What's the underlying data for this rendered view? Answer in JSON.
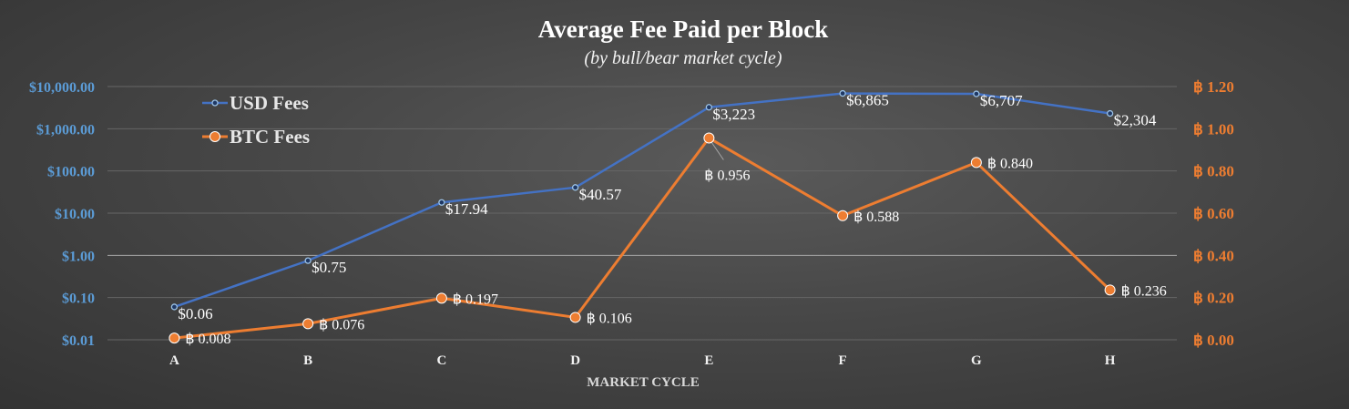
{
  "chart_data": {
    "type": "line",
    "title": "Average Fee Paid per Block",
    "subtitle": "(by bull/bear market cycle)",
    "xlabel": "MARKET CYCLE",
    "categories": [
      "A",
      "B",
      "C",
      "D",
      "E",
      "F",
      "G",
      "H"
    ],
    "y_left": {
      "scale": "log",
      "range": [
        0.01,
        10000
      ],
      "ticks": [
        0.01,
        0.1,
        1,
        10,
        100,
        1000,
        10000
      ],
      "tick_labels": [
        "$0.01",
        "$0.10",
        "$1.00",
        "$10.00",
        "$100.00",
        "$1,000.00",
        "$10,000.00"
      ],
      "color": "#5b9bd5"
    },
    "y_right": {
      "scale": "linear",
      "range": [
        0,
        1.2
      ],
      "ticks": [
        0,
        0.2,
        0.4,
        0.6,
        0.8,
        1.0,
        1.2
      ],
      "tick_labels": [
        "฿ 0.00",
        "฿ 0.20",
        "฿ 0.40",
        "฿ 0.60",
        "฿ 0.80",
        "฿ 1.00",
        "฿ 1.20"
      ],
      "color": "#ed7d31"
    },
    "grid": true,
    "legend_position": "top-left",
    "series": [
      {
        "name": "USD Fees",
        "axis": "left",
        "color": "#4472c4",
        "values": [
          0.06,
          0.75,
          17.94,
          40.57,
          3223,
          6865,
          6707,
          2304
        ],
        "labels": [
          "$0.06",
          "$0.75",
          "$17.94",
          "$40.57",
          "$3,223",
          "$6,865",
          "$6,707",
          "$2,304"
        ]
      },
      {
        "name": "BTC Fees",
        "axis": "right",
        "color": "#ed7d31",
        "values": [
          0.008,
          0.076,
          0.197,
          0.106,
          0.956,
          0.588,
          0.84,
          0.236
        ],
        "labels": [
          "฿ 0.008",
          "฿ 0.076",
          "฿ 0.197",
          "฿ 0.106",
          "฿ 0.956",
          "฿ 0.588",
          "฿ 0.840",
          "฿ 0.236"
        ]
      }
    ]
  }
}
